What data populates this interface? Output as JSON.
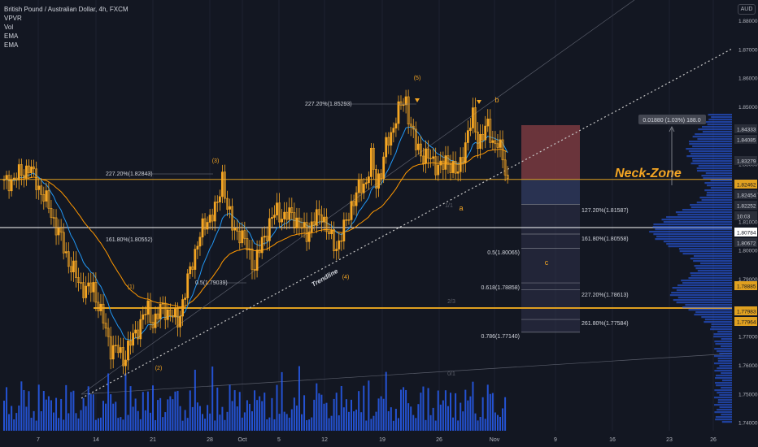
{
  "header": {
    "title": "British Pound / Australian Dollar, 4h, FXCM",
    "indicators": [
      "VPVR",
      "Vol",
      "EMA",
      "EMA"
    ],
    "currency": "AUD"
  },
  "colors": {
    "background": "#131722",
    "candle": "#f5a623",
    "volume": "#2962ff",
    "ema_fast": "#2196f3",
    "ema_slow": "#ff9800",
    "orange_line": "#e0a020",
    "white_line": "#ffffff",
    "trendline": "#c8c8c8",
    "red_zone": "#7a3a3f",
    "blue_zone": "#2c3556",
    "projection_zone": "#30324a",
    "label_text": "#d1d4dc",
    "wave_label": "#f5a623",
    "neck_zone": "#f5a623"
  },
  "chart_data": {
    "type": "candlestick",
    "symbol": "British Pound / Australian Dollar",
    "timeframe": "4h",
    "x_ticks": [
      "7",
      "14",
      "21",
      "28",
      "Oct",
      "5",
      "12",
      "19",
      "26",
      "Nov",
      "9",
      "16",
      "23",
      "26"
    ],
    "y_ticks": [
      1.88,
      1.87,
      1.86,
      1.85,
      1.83,
      1.82,
      1.81,
      1.8,
      1.79,
      1.77,
      1.76,
      1.75,
      1.74
    ],
    "ylim": [
      1.7385,
      1.8885
    ],
    "price_path": [
      [
        0,
        1.823
      ],
      [
        6,
        1.826
      ],
      [
        10,
        1.829
      ],
      [
        14,
        1.822
      ],
      [
        18,
        1.815
      ],
      [
        22,
        1.806
      ],
      [
        26,
        1.796
      ],
      [
        30,
        1.789
      ],
      [
        33,
        1.786
      ],
      [
        36,
        1.787
      ],
      [
        40,
        1.775
      ],
      [
        43,
        1.766
      ],
      [
        46,
        1.765
      ],
      [
        48,
        1.762
      ],
      [
        50,
        1.766
      ],
      [
        53,
        1.771
      ],
      [
        56,
        1.777
      ],
      [
        58,
        1.779
      ],
      [
        60,
        1.775
      ],
      [
        64,
        1.78
      ],
      [
        68,
        1.777
      ],
      [
        70,
        1.775
      ],
      [
        74,
        1.789
      ],
      [
        78,
        1.803
      ],
      [
        80,
        1.807
      ],
      [
        83,
        1.812
      ],
      [
        86,
        1.815
      ],
      [
        88,
        1.826
      ],
      [
        90,
        1.815
      ],
      [
        92,
        1.808
      ],
      [
        95,
        1.806
      ],
      [
        98,
        1.801
      ],
      [
        101,
        1.794
      ],
      [
        104,
        1.803
      ],
      [
        107,
        1.809
      ],
      [
        110,
        1.814
      ],
      [
        113,
        1.811
      ],
      [
        116,
        1.813
      ],
      [
        119,
        1.808
      ],
      [
        122,
        1.806
      ],
      [
        125,
        1.81
      ],
      [
        128,
        1.813
      ],
      [
        131,
        1.805
      ],
      [
        134,
        1.801
      ],
      [
        137,
        1.807
      ],
      [
        140,
        1.816
      ],
      [
        143,
        1.821
      ],
      [
        146,
        1.824
      ],
      [
        148,
        1.832
      ],
      [
        150,
        1.823
      ],
      [
        152,
        1.828
      ],
      [
        154,
        1.836
      ],
      [
        156,
        1.84
      ],
      [
        158,
        1.847
      ],
      [
        160,
        1.85
      ],
      [
        162,
        1.852
      ],
      [
        164,
        1.843
      ],
      [
        166,
        1.836
      ],
      [
        168,
        1.834
      ],
      [
        171,
        1.832
      ],
      [
        174,
        1.83
      ],
      [
        177,
        1.829
      ],
      [
        179,
        1.831
      ],
      [
        181,
        1.829
      ],
      [
        183,
        1.826
      ],
      [
        185,
        1.834
      ],
      [
        187,
        1.841
      ],
      [
        189,
        1.846
      ],
      [
        191,
        1.838
      ],
      [
        193,
        1.84
      ],
      [
        195,
        1.843
      ],
      [
        197,
        1.838
      ],
      [
        199,
        1.837
      ],
      [
        201,
        1.832
      ],
      [
        203,
        1.824
      ]
    ],
    "last_index": 203,
    "price_labels": [
      {
        "value": "1.84333",
        "color": "#d1d4dc"
      },
      {
        "value": "1.84085",
        "color": "#d1d4dc"
      },
      {
        "value": "1.83279",
        "color": "#d1d4dc"
      },
      {
        "value": "1.82462",
        "color": "#e0a020"
      },
      {
        "value": "1.82454",
        "color": "#d1d4dc"
      },
      {
        "value": "1.82252",
        "color": "#d1d4dc"
      },
      {
        "value": "10:03",
        "color": "#d1d4dc"
      },
      {
        "value": "1.80784",
        "color": "#ffffff"
      },
      {
        "value": "1.80672",
        "color": "#d1d4dc"
      },
      {
        "value": "1.78885",
        "color": "#e0a020"
      },
      {
        "value": "1.77983",
        "color": "#e0a020"
      },
      {
        "value": "1.77964",
        "color": "#e0a020"
      }
    ],
    "horizontal_levels": [
      {
        "price": 1.82462,
        "color": "orange",
        "label": "1.82462"
      },
      {
        "price": 1.80784,
        "color": "white",
        "label": "1.80784"
      },
      {
        "price": 1.77983,
        "color": "orange",
        "label": "1.77983"
      }
    ],
    "fib_labels_left": [
      {
        "text": "227.20%(1.85293)"
      },
      {
        "text": "227.20%(1.82843)"
      },
      {
        "text": "161.80%(1.80552)"
      },
      {
        "text": "0.5(1.79039)"
      }
    ],
    "fib_labels_right": [
      {
        "text": "127.20%(1.81587)"
      },
      {
        "text": "161.80%(1.80558)"
      },
      {
        "text": "0.5(1.80065)"
      },
      {
        "text": "0.618(1.78858)"
      },
      {
        "text": "227.20%(1.78613)"
      },
      {
        "text": "261.80%(1.77584)"
      },
      {
        "text": "0.786(1.77140)"
      }
    ],
    "wave_labels": [
      "(1)",
      "(2)",
      "(3)",
      "(4)",
      "(5)",
      "a",
      "b",
      "c",
      "1/1",
      "2/3",
      "0/1"
    ],
    "annotations": {
      "trendline_label": "Trendline",
      "neck_zone_label": "Neck-Zone",
      "measure_label": "0.01880 (1.03%) 188.0"
    },
    "volume_profile": "right-side histogram, peak near 1.807 and 1.785"
  }
}
